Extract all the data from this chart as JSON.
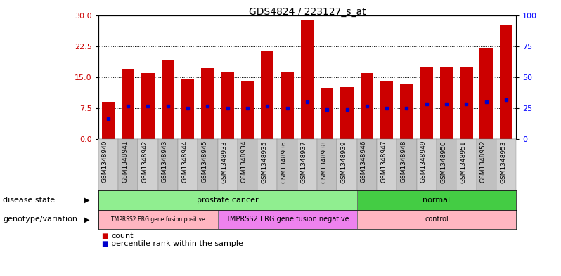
{
  "title": "GDS4824 / 223127_s_at",
  "samples": [
    "GSM1348940",
    "GSM1348941",
    "GSM1348942",
    "GSM1348943",
    "GSM1348944",
    "GSM1348945",
    "GSM1348933",
    "GSM1348934",
    "GSM1348935",
    "GSM1348936",
    "GSM1348937",
    "GSM1348938",
    "GSM1348939",
    "GSM1348946",
    "GSM1348947",
    "GSM1348948",
    "GSM1348949",
    "GSM1348950",
    "GSM1348951",
    "GSM1348952",
    "GSM1348953"
  ],
  "counts": [
    9.0,
    17.0,
    16.0,
    19.0,
    14.5,
    17.2,
    16.3,
    14.0,
    21.5,
    16.2,
    29.0,
    12.5,
    12.7,
    16.0,
    14.0,
    13.5,
    17.5,
    17.3,
    17.3,
    22.0,
    27.5
  ],
  "percentiles": [
    5.0,
    8.0,
    8.0,
    8.0,
    7.5,
    8.0,
    7.5,
    7.5,
    8.0,
    7.5,
    9.0,
    7.2,
    7.2,
    8.0,
    7.5,
    7.5,
    8.5,
    8.5,
    8.5,
    9.0,
    9.5
  ],
  "disease_state_groups": [
    {
      "label": "prostate cancer",
      "start": 0,
      "end": 13,
      "color": "#90EE90"
    },
    {
      "label": "normal",
      "start": 13,
      "end": 21,
      "color": "#44CC44"
    }
  ],
  "genotype_groups": [
    {
      "label": "TMPRSS2:ERG gene fusion positive",
      "start": 0,
      "end": 6,
      "color": "#FFB6C1",
      "fontsize": 5.5
    },
    {
      "label": "TMPRSS2:ERG gene fusion negative",
      "start": 6,
      "end": 13,
      "color": "#EE82EE",
      "fontsize": 7
    },
    {
      "label": "control",
      "start": 13,
      "end": 21,
      "color": "#FFB6C1",
      "fontsize": 7
    }
  ],
  "ylim_left": [
    0,
    30
  ],
  "ylim_right": [
    0,
    100
  ],
  "yticks_left": [
    0,
    7.5,
    15,
    22.5,
    30
  ],
  "yticks_right": [
    0,
    25,
    50,
    75,
    100
  ],
  "bar_color": "#CC0000",
  "dot_color": "#0000CC",
  "label_row1": "disease state",
  "label_row2": "genotype/variation",
  "legend_count": "count",
  "legend_pct": "percentile rank within the sample",
  "sample_bg_even": "#D0D0D0",
  "sample_bg_odd": "#C0C0C0"
}
